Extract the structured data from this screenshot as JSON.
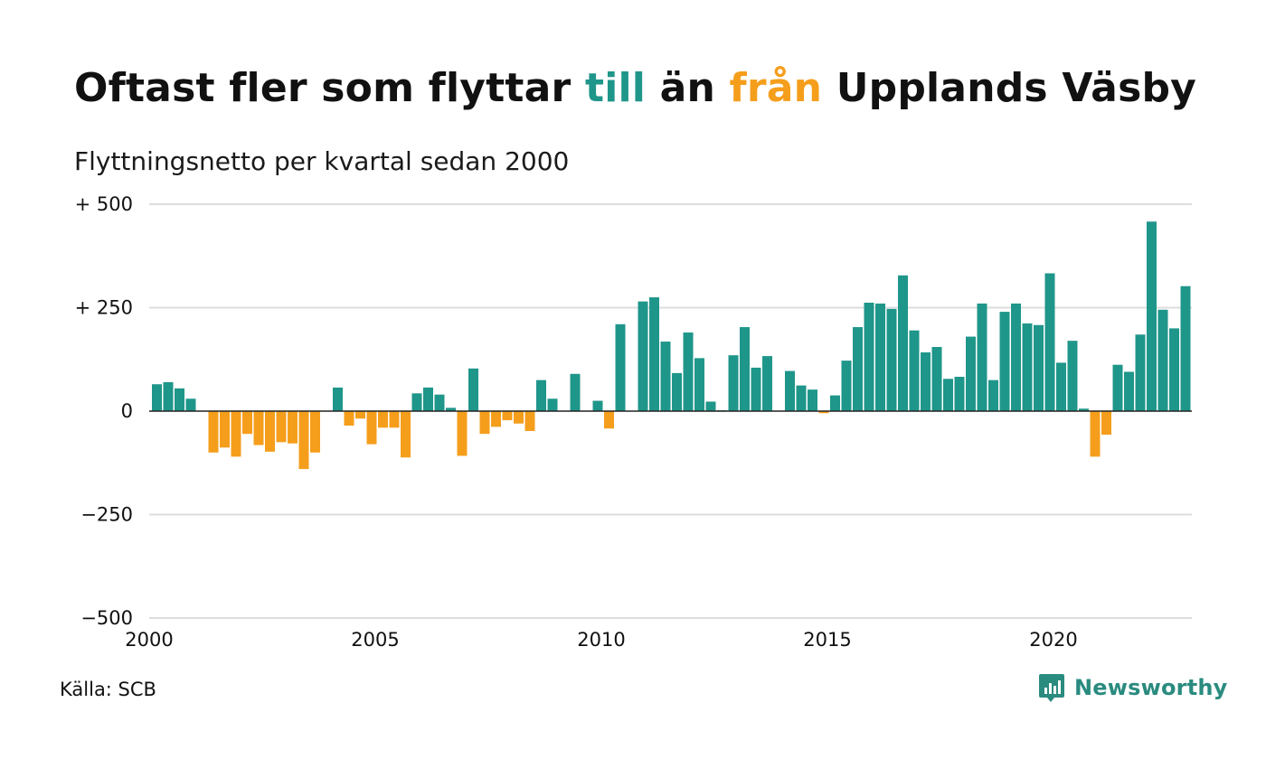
{
  "title": {
    "part1": "Oftast fler som flyttar ",
    "word_to": "till",
    "part2": " än ",
    "word_from": "från",
    "part3": " Upplands Väsby"
  },
  "subtitle": "Flyttningsnetto per kvartal sedan 2000",
  "source": "Källa: SCB",
  "brand": {
    "name": "Newsworthy",
    "icon": "newsworthy-logo-icon"
  },
  "colors": {
    "positive": "#1f968a",
    "negative": "#f59e1c",
    "grid": "#dddddd",
    "zero_line": "#222222",
    "brand": "#2a8b7f"
  },
  "chart_data": {
    "type": "bar",
    "title": "Oftast fler som flyttar till än från Upplands Väsby",
    "subtitle": "Flyttningsnetto per kvartal sedan 2000",
    "xlabel": "",
    "ylabel": "",
    "ylim": [
      -500,
      500
    ],
    "y_ticks": [
      {
        "value": 500,
        "label": "+ 500"
      },
      {
        "value": 250,
        "label": "+ 250"
      },
      {
        "value": 0,
        "label": "0"
      },
      {
        "value": -250,
        "label": "−250"
      },
      {
        "value": -500,
        "label": "−500"
      }
    ],
    "x_ticks": [
      "2000",
      "2005",
      "2010",
      "2015",
      "2020"
    ],
    "x_range": [
      "2000",
      "2023"
    ],
    "grid": "horizontal",
    "series": [
      {
        "periods": [
          "2000-Q1",
          "2000-Q2",
          "2000-Q3",
          "2000-Q4",
          "2001-Q1",
          "2001-Q2",
          "2001-Q3",
          "2001-Q4",
          "2002-Q1",
          "2002-Q2",
          "2002-Q3",
          "2002-Q4",
          "2003-Q1",
          "2003-Q2",
          "2003-Q3",
          "2003-Q4",
          "2004-Q1",
          "2004-Q2",
          "2004-Q3",
          "2004-Q4",
          "2005-Q1",
          "2005-Q2",
          "2005-Q3",
          "2005-Q4",
          "2006-Q1",
          "2006-Q2",
          "2006-Q3",
          "2006-Q4",
          "2007-Q1",
          "2007-Q2",
          "2007-Q3",
          "2007-Q4",
          "2008-Q1",
          "2008-Q2",
          "2008-Q3",
          "2008-Q4",
          "2009-Q1",
          "2009-Q2",
          "2009-Q3",
          "2009-Q4",
          "2010-Q1",
          "2010-Q2",
          "2010-Q3",
          "2010-Q4",
          "2011-Q1",
          "2011-Q2",
          "2011-Q3",
          "2011-Q4",
          "2012-Q1",
          "2012-Q2",
          "2012-Q3",
          "2012-Q4",
          "2013-Q1",
          "2013-Q2",
          "2013-Q3",
          "2013-Q4",
          "2014-Q1",
          "2014-Q2",
          "2014-Q3",
          "2014-Q4",
          "2015-Q1",
          "2015-Q2",
          "2015-Q3",
          "2015-Q4",
          "2016-Q1",
          "2016-Q2",
          "2016-Q3",
          "2016-Q4",
          "2017-Q1",
          "2017-Q2",
          "2017-Q3",
          "2017-Q4",
          "2018-Q1",
          "2018-Q2",
          "2018-Q3",
          "2018-Q4",
          "2019-Q1",
          "2019-Q2",
          "2019-Q3",
          "2019-Q4",
          "2020-Q1",
          "2020-Q2",
          "2020-Q3",
          "2020-Q4",
          "2021-Q1",
          "2021-Q2",
          "2021-Q3",
          "2021-Q4",
          "2022-Q1",
          "2022-Q2",
          "2022-Q3",
          "2022-Q4"
        ],
        "values": [
          65,
          70,
          55,
          30,
          0,
          -100,
          -88,
          -110,
          -55,
          -82,
          -98,
          -75,
          -78,
          -140,
          -100,
          0,
          57,
          -35,
          -18,
          -80,
          -40,
          -40,
          -112,
          43,
          57,
          40,
          8,
          -108,
          103,
          -55,
          -38,
          -22,
          -30,
          -48,
          75,
          30,
          0,
          90,
          0,
          25,
          -42,
          210,
          0,
          265,
          275,
          168,
          92,
          190,
          128,
          23,
          2,
          135,
          203,
          105,
          133,
          0,
          97,
          62,
          52,
          -5,
          38,
          122,
          203,
          262,
          260,
          247,
          328,
          195,
          142,
          155,
          78,
          83,
          180,
          260,
          75,
          240,
          260,
          212,
          208,
          333,
          117,
          170,
          6,
          -110,
          -57,
          112,
          95,
          185,
          458,
          245,
          200,
          302
        ]
      }
    ]
  }
}
